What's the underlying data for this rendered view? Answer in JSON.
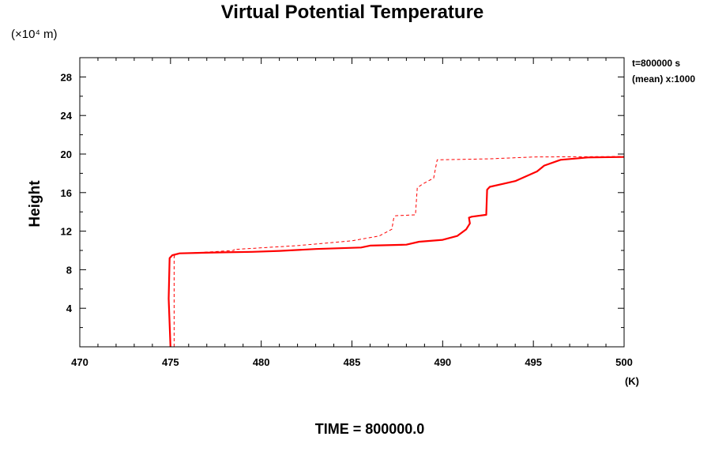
{
  "chart_data": {
    "type": "line",
    "title": "Virtual Potential Temperature",
    "xlabel": "(K)",
    "ylabel": "Height",
    "y_units_label": "(×10⁴ m)",
    "xlim": [
      470,
      500
    ],
    "ylim": [
      0,
      30
    ],
    "x_major_ticks": [
      470,
      475,
      480,
      485,
      490,
      495,
      500
    ],
    "x_tick_labels": [
      "470",
      "475",
      "480",
      "485",
      "490",
      "495",
      "500"
    ],
    "y_major_ticks": [
      4,
      8,
      12,
      16,
      20,
      24,
      28
    ],
    "y_tick_labels": [
      "4",
      "8",
      "12",
      "16",
      "20",
      "24",
      "28"
    ],
    "annotations": [
      "t=800000 s",
      "(mean) x:1000"
    ],
    "footer": "TIME = 800000.0",
    "series": [
      {
        "style": "solid",
        "color": "#ff0000",
        "x": [
          475.0,
          474.9,
          474.95,
          475.1,
          475.5,
          476.5,
          478,
          479.5,
          481,
          483,
          485.5,
          486,
          488,
          488.7,
          490,
          490.8,
          491.3,
          491.5,
          491.45,
          491.6,
          492.4,
          492.45,
          492.6,
          494,
          495.2,
          495.6,
          496.5,
          498,
          500
        ],
        "y": [
          0,
          5,
          9.2,
          9.5,
          9.7,
          9.75,
          9.8,
          9.85,
          9.95,
          10.15,
          10.3,
          10.5,
          10.6,
          10.9,
          11.1,
          11.5,
          12.2,
          12.8,
          13.4,
          13.5,
          13.7,
          16.3,
          16.6,
          17.2,
          18.2,
          18.8,
          19.4,
          19.65,
          19.7
        ]
      },
      {
        "style": "dashed",
        "color": "#ff0000",
        "x": [
          475.2,
          475.2,
          475.5,
          476.8,
          478.5,
          478.5,
          482,
          485,
          486.5,
          487.2,
          487.3,
          487.4,
          488.5,
          488.6,
          488.9,
          489.5,
          489.7,
          492.5,
          495,
          500
        ],
        "y": [
          0,
          9.4,
          9.7,
          9.8,
          10.0,
          10.1,
          10.5,
          11.0,
          11.5,
          12.2,
          13.3,
          13.6,
          13.7,
          16.5,
          16.9,
          17.5,
          19.4,
          19.5,
          19.7,
          19.75
        ]
      }
    ],
    "grid": false,
    "legend": "none"
  }
}
